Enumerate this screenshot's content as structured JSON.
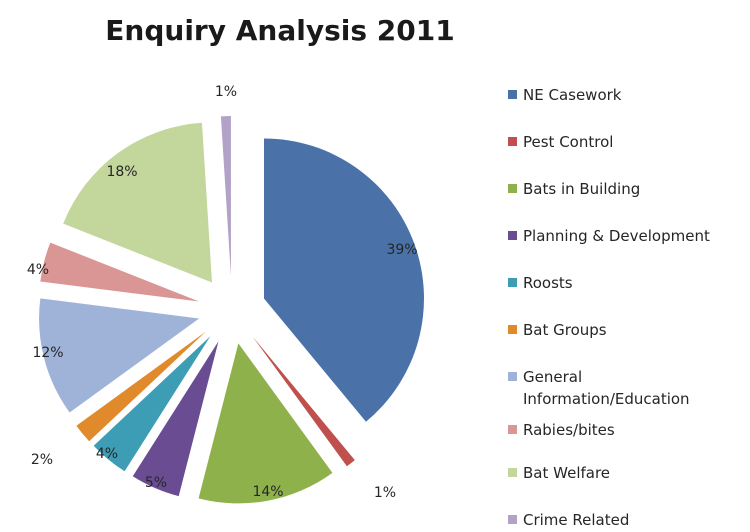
{
  "chart_data": {
    "type": "pie",
    "title": "Enquiry Analysis 2011",
    "legend": "right",
    "slices": [
      {
        "name": "NE Casework",
        "value": 39,
        "label": "39%",
        "color": "#4a72a8"
      },
      {
        "name": "Pest Control",
        "value": 1,
        "label": "1%",
        "color": "#c0504d"
      },
      {
        "name": "Bats in Building",
        "value": 14,
        "label": "14%",
        "color": "#8fb14b"
      },
      {
        "name": "Planning & Development",
        "value": 5,
        "label": "5%",
        "color": "#6a4c93"
      },
      {
        "name": "Roosts",
        "value": 4,
        "label": "4%",
        "color": "#3c9db5"
      },
      {
        "name": "Bat Groups",
        "value": 2,
        "label": "2%",
        "color": "#e08a2c"
      },
      {
        "name": "General Information/Education",
        "value": 12,
        "label": "12%",
        "color": "#9fb3d9"
      },
      {
        "name": "Rabies/bites",
        "value": 4,
        "label": "4%",
        "color": "#d99694"
      },
      {
        "name": "Bat Welfare",
        "value": 18,
        "label": "18%",
        "color": "#c3d69b"
      },
      {
        "name": "Crime Related",
        "value": 1,
        "label": "1%",
        "color": "#b3a2c7"
      }
    ]
  }
}
